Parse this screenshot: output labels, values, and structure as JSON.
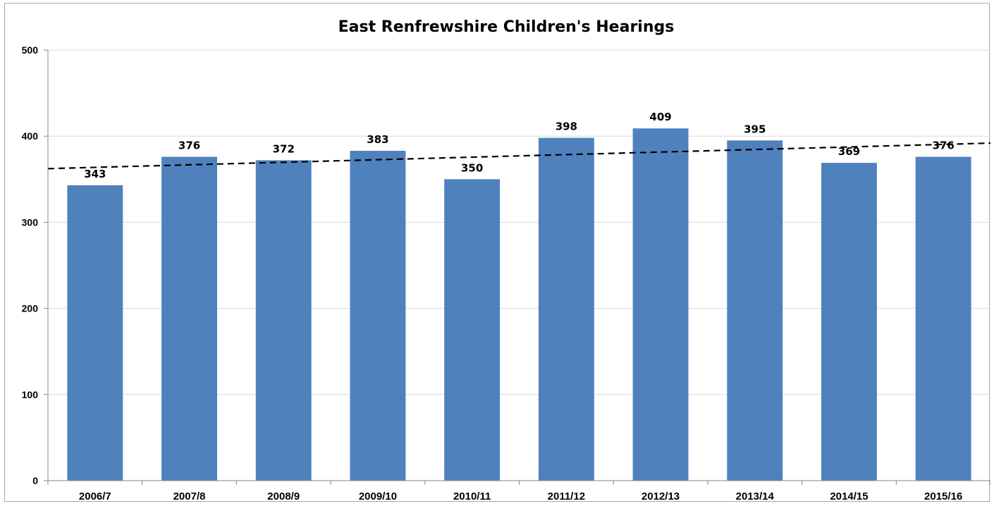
{
  "chart_data": {
    "type": "bar",
    "title": "East Renfrewshire Children's Hearings",
    "xlabel": "",
    "ylabel": "",
    "categories": [
      "2006/7",
      "2007/8",
      "2008/9",
      "2009/10",
      "2010/11",
      "2011/12",
      "2012/13",
      "2013/14",
      "2014/15",
      "2015/16"
    ],
    "series": [
      {
        "values": [
          343,
          376,
          372,
          383,
          350,
          398,
          409,
          395,
          369,
          376
        ],
        "color": "#4f81bd"
      }
    ],
    "data_labels": [
      "343",
      "376",
      "372",
      "383",
      "350",
      "398",
      "409",
      "395",
      "369",
      "376"
    ],
    "ylim": [
      0,
      500
    ],
    "yticks": [
      0,
      100,
      200,
      300,
      400,
      500
    ],
    "ytick_labels": [
      "0",
      "100",
      "200",
      "300",
      "400",
      "500"
    ],
    "grid": true,
    "gridline_color": "#d9d9d9",
    "trendline": {
      "type": "linear",
      "style": "dashed",
      "color": "#000000"
    },
    "legend": "none"
  }
}
